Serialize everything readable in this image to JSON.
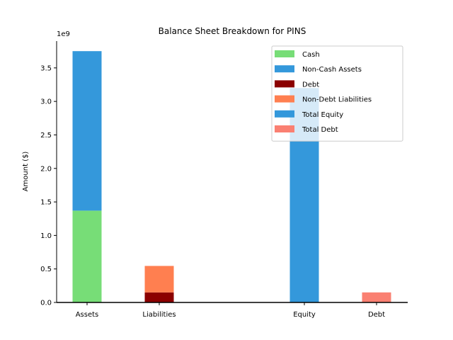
{
  "chart_data": {
    "type": "bar",
    "title": "Balance Sheet Breakdown for PINS",
    "xlabel": "",
    "ylabel": "Amount ($)",
    "offset_label": "1e9",
    "ylim": [
      0,
      3.9
    ],
    "yticks": [
      "0.0",
      "0.5",
      "1.0",
      "1.5",
      "2.0",
      "2.5",
      "3.0",
      "3.5"
    ],
    "scale": 1000000000,
    "categories": [
      "Assets",
      "Liabilities",
      "Equity",
      "Debt"
    ],
    "bars": [
      {
        "category": "Assets",
        "series": "Cash",
        "bottom": 0,
        "value": 1.37
      },
      {
        "category": "Assets",
        "series": "Non-Cash Assets",
        "bottom": 1.37,
        "value": 2.38
      },
      {
        "category": "Liabilities",
        "series": "Debt",
        "bottom": 0,
        "value": 0.15
      },
      {
        "category": "Liabilities",
        "series": "Non-Debt Liabilities",
        "bottom": 0.15,
        "value": 0.395
      },
      {
        "category": "Equity",
        "series": "Total Equity",
        "bottom": 0,
        "value": 3.2
      },
      {
        "category": "Debt",
        "series": "Total Debt",
        "bottom": 0,
        "value": 0.15
      }
    ],
    "legend": [
      {
        "name": "Cash",
        "color": "#77dd77"
      },
      {
        "name": "Non-Cash Assets",
        "color": "#3498db"
      },
      {
        "name": "Debt",
        "color": "#8b0000"
      },
      {
        "name": "Non-Debt Liabilities",
        "color": "#ff7f50"
      },
      {
        "name": "Total Equity",
        "color": "#3498db"
      },
      {
        "name": "Total Debt",
        "color": "#fa8072"
      }
    ],
    "legend_position": "top-right",
    "grid": false
  }
}
